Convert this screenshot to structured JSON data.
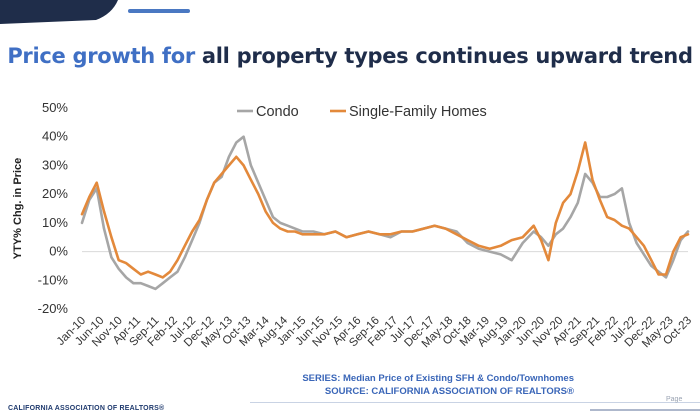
{
  "header": {
    "title_lead": "Price growth for",
    "title_rest": " all property types continues upward trend"
  },
  "footer": {
    "org": "CALIFORNIA ASSOCIATION OF REALTORS®",
    "series_note": "SERIES: Median Price of Existing SFH & Condo/Townhomes",
    "source_note": "SOURCE: CALIFORNIA ASSOCIATION OF REALTORS®",
    "page_label": "Page"
  },
  "colors": {
    "condo": "#a6a6a6",
    "sfh": "#e3893b",
    "brand_blue": "#3f6fc4",
    "navy": "#1f2d4a"
  },
  "chart_data": {
    "type": "line",
    "ylabel": "YTY% Chg. in Price",
    "ylim": [
      -20,
      50
    ],
    "yticks": [
      -20,
      -10,
      0,
      10,
      20,
      30,
      40,
      50
    ],
    "ytick_labels": [
      "-20%",
      "-10%",
      "0%",
      "10%",
      "20%",
      "30%",
      "40%",
      "50%"
    ],
    "x_range": [
      "2010-01",
      "2023-10"
    ],
    "xtick_labels": [
      "Jan-10",
      "Jun-10",
      "Nov-10",
      "Apr-11",
      "Sep-11",
      "Feb-12",
      "Jul-12",
      "Dec-12",
      "May-13",
      "Oct-13",
      "Mar-14",
      "Aug-14",
      "Jan-15",
      "Jun-15",
      "Nov-15",
      "Apr-16",
      "Sep-16",
      "Feb-17",
      "Jul-17",
      "Dec-17",
      "May-18",
      "Oct-18",
      "Mar-19",
      "Aug-19",
      "Jan-20",
      "Jun-20",
      "Nov-20",
      "Apr-21",
      "Sep-21",
      "Feb-22",
      "Jul-22",
      "Dec-22",
      "May-23",
      "Oct-23"
    ],
    "legend_position": "top",
    "grid": false,
    "series": [
      {
        "name": "Condo",
        "color": "#a6a6a6",
        "points": [
          [
            "2010-01",
            10
          ],
          [
            "2010-03",
            18
          ],
          [
            "2010-05",
            22
          ],
          [
            "2010-07",
            8
          ],
          [
            "2010-09",
            -2
          ],
          [
            "2010-11",
            -6
          ],
          [
            "2011-01",
            -9
          ],
          [
            "2011-03",
            -11
          ],
          [
            "2011-05",
            -11
          ],
          [
            "2011-07",
            -12
          ],
          [
            "2011-09",
            -13
          ],
          [
            "2011-11",
            -11
          ],
          [
            "2012-01",
            -9
          ],
          [
            "2012-03",
            -7
          ],
          [
            "2012-05",
            -2
          ],
          [
            "2012-07",
            4
          ],
          [
            "2012-09",
            10
          ],
          [
            "2012-11",
            18
          ],
          [
            "2013-01",
            24
          ],
          [
            "2013-03",
            26
          ],
          [
            "2013-05",
            33
          ],
          [
            "2013-07",
            38
          ],
          [
            "2013-09",
            40
          ],
          [
            "2013-11",
            30
          ],
          [
            "2014-01",
            24
          ],
          [
            "2014-03",
            18
          ],
          [
            "2014-05",
            12
          ],
          [
            "2014-07",
            10
          ],
          [
            "2014-09",
            9
          ],
          [
            "2014-11",
            8
          ],
          [
            "2015-01",
            7
          ],
          [
            "2015-04",
            7
          ],
          [
            "2015-07",
            6
          ],
          [
            "2015-10",
            7
          ],
          [
            "2016-01",
            5
          ],
          [
            "2016-04",
            6
          ],
          [
            "2016-07",
            7
          ],
          [
            "2016-10",
            6
          ],
          [
            "2017-01",
            5
          ],
          [
            "2017-04",
            7
          ],
          [
            "2017-07",
            7
          ],
          [
            "2017-10",
            8
          ],
          [
            "2018-01",
            9
          ],
          [
            "2018-04",
            8
          ],
          [
            "2018-07",
            7
          ],
          [
            "2018-10",
            3
          ],
          [
            "2019-01",
            1
          ],
          [
            "2019-04",
            0
          ],
          [
            "2019-07",
            -1
          ],
          [
            "2019-10",
            -3
          ],
          [
            "2020-01",
            3
          ],
          [
            "2020-04",
            7
          ],
          [
            "2020-06",
            5
          ],
          [
            "2020-08",
            2
          ],
          [
            "2020-10",
            6
          ],
          [
            "2020-12",
            8
          ],
          [
            "2021-02",
            12
          ],
          [
            "2021-04",
            17
          ],
          [
            "2021-06",
            27
          ],
          [
            "2021-08",
            24
          ],
          [
            "2021-10",
            19
          ],
          [
            "2021-12",
            19
          ],
          [
            "2022-02",
            20
          ],
          [
            "2022-04",
            22
          ],
          [
            "2022-06",
            10
          ],
          [
            "2022-08",
            3
          ],
          [
            "2022-10",
            -1
          ],
          [
            "2022-12",
            -5
          ],
          [
            "2023-02",
            -7
          ],
          [
            "2023-04",
            -9
          ],
          [
            "2023-06",
            -3
          ],
          [
            "2023-08",
            4
          ],
          [
            "2023-10",
            7
          ]
        ]
      },
      {
        "name": "Single-Family Homes",
        "color": "#e3893b",
        "points": [
          [
            "2010-01",
            13
          ],
          [
            "2010-03",
            19
          ],
          [
            "2010-05",
            24
          ],
          [
            "2010-07",
            14
          ],
          [
            "2010-09",
            5
          ],
          [
            "2010-11",
            -3
          ],
          [
            "2011-01",
            -4
          ],
          [
            "2011-03",
            -6
          ],
          [
            "2011-05",
            -8
          ],
          [
            "2011-07",
            -7
          ],
          [
            "2011-09",
            -8
          ],
          [
            "2011-11",
            -9
          ],
          [
            "2012-01",
            -7
          ],
          [
            "2012-03",
            -3
          ],
          [
            "2012-05",
            2
          ],
          [
            "2012-07",
            7
          ],
          [
            "2012-09",
            11
          ],
          [
            "2012-11",
            18
          ],
          [
            "2013-01",
            24
          ],
          [
            "2013-03",
            27
          ],
          [
            "2013-05",
            30
          ],
          [
            "2013-07",
            33
          ],
          [
            "2013-09",
            30
          ],
          [
            "2013-11",
            25
          ],
          [
            "2014-01",
            20
          ],
          [
            "2014-03",
            14
          ],
          [
            "2014-05",
            10
          ],
          [
            "2014-07",
            8
          ],
          [
            "2014-09",
            7
          ],
          [
            "2014-11",
            7
          ],
          [
            "2015-01",
            6
          ],
          [
            "2015-04",
            6
          ],
          [
            "2015-07",
            6
          ],
          [
            "2015-10",
            7
          ],
          [
            "2016-01",
            5
          ],
          [
            "2016-04",
            6
          ],
          [
            "2016-07",
            7
          ],
          [
            "2016-10",
            6
          ],
          [
            "2017-01",
            6
          ],
          [
            "2017-04",
            7
          ],
          [
            "2017-07",
            7
          ],
          [
            "2017-10",
            8
          ],
          [
            "2018-01",
            9
          ],
          [
            "2018-04",
            8
          ],
          [
            "2018-07",
            6
          ],
          [
            "2018-10",
            4
          ],
          [
            "2019-01",
            2
          ],
          [
            "2019-04",
            1
          ],
          [
            "2019-07",
            2
          ],
          [
            "2019-10",
            4
          ],
          [
            "2020-01",
            5
          ],
          [
            "2020-04",
            9
          ],
          [
            "2020-06",
            4
          ],
          [
            "2020-08",
            -3
          ],
          [
            "2020-10",
            10
          ],
          [
            "2020-12",
            17
          ],
          [
            "2021-02",
            20
          ],
          [
            "2021-04",
            28
          ],
          [
            "2021-06",
            38
          ],
          [
            "2021-08",
            25
          ],
          [
            "2021-10",
            18
          ],
          [
            "2021-12",
            12
          ],
          [
            "2022-02",
            11
          ],
          [
            "2022-04",
            9
          ],
          [
            "2022-06",
            8
          ],
          [
            "2022-08",
            5
          ],
          [
            "2022-10",
            2
          ],
          [
            "2022-12",
            -3
          ],
          [
            "2023-02",
            -8
          ],
          [
            "2023-04",
            -8
          ],
          [
            "2023-06",
            0
          ],
          [
            "2023-08",
            5
          ],
          [
            "2023-10",
            6
          ]
        ]
      }
    ]
  }
}
